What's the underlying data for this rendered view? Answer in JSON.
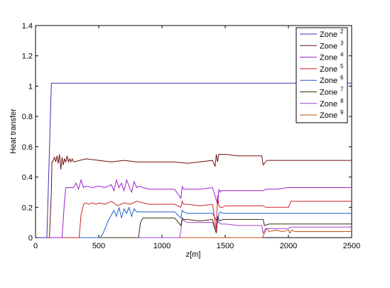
{
  "chart_data": {
    "type": "line",
    "xlabel": "z[m]",
    "ylabel": "Heat transfer",
    "xlim": [
      0,
      2500
    ],
    "ylim": [
      0,
      1.4
    ],
    "xticks": [
      "0",
      "500",
      "1000",
      "1500",
      "2000",
      "2500"
    ],
    "yticks": [
      "0",
      "0.2",
      "0.4",
      "0.6",
      "0.8",
      "1",
      "1.2",
      "1.4"
    ],
    "grid": false,
    "legend_position": "top-right",
    "series": [
      {
        "name": "Zone",
        "sup": "2",
        "color": "#3a2fb8",
        "x": [
          0,
          90,
          125,
          2500
        ],
        "y": [
          0,
          0,
          1.02,
          1.02
        ]
      },
      {
        "name": "Zone",
        "sup": "3",
        "color": "#6b0f0f",
        "x": [
          0,
          110,
          125,
          130,
          135,
          150,
          160,
          170,
          180,
          190,
          200,
          210,
          220,
          230,
          240,
          250,
          260,
          270,
          280,
          290,
          300,
          350,
          400,
          500,
          600,
          700,
          800,
          900,
          1000,
          1100,
          1200,
          1300,
          1400,
          1420,
          1430,
          1440,
          1450,
          1460,
          1470,
          1500,
          1600,
          1700,
          1790,
          1800,
          1810,
          1830,
          1850,
          1900,
          2000,
          2500
        ],
        "y": [
          0,
          0,
          0.3,
          0.5,
          0.5,
          0.53,
          0.5,
          0.54,
          0.49,
          0.55,
          0.45,
          0.53,
          0.48,
          0.52,
          0.5,
          0.54,
          0.5,
          0.52,
          0.5,
          0.52,
          0.5,
          0.51,
          0.52,
          0.51,
          0.5,
          0.51,
          0.5,
          0.5,
          0.5,
          0.5,
          0.49,
          0.5,
          0.51,
          0.47,
          0.55,
          0.5,
          0.55,
          0.55,
          0.55,
          0.55,
          0.54,
          0.54,
          0.54,
          0.48,
          0.49,
          0.51,
          0.51,
          0.51,
          0.51,
          0.51
        ]
      },
      {
        "name": "Zone",
        "sup": "4",
        "color": "#9b1fd0",
        "x": [
          0,
          210,
          230,
          240,
          250,
          300,
          320,
          340,
          360,
          380,
          400,
          450,
          500,
          550,
          600,
          620,
          640,
          660,
          680,
          700,
          720,
          740,
          760,
          780,
          800,
          820,
          850,
          900,
          1000,
          1100,
          1150,
          1160,
          1170,
          1200,
          1300,
          1400,
          1440,
          1450,
          1460,
          1470,
          1500,
          1800,
          1820,
          1900,
          2000,
          2500
        ],
        "y": [
          0,
          0,
          0.25,
          0.33,
          0.33,
          0.33,
          0.36,
          0.32,
          0.38,
          0.33,
          0.34,
          0.33,
          0.34,
          0.33,
          0.35,
          0.31,
          0.38,
          0.33,
          0.36,
          0.31,
          0.38,
          0.34,
          0.3,
          0.37,
          0.33,
          0.34,
          0.33,
          0.32,
          0.32,
          0.32,
          0.26,
          0.34,
          0.32,
          0.32,
          0.32,
          0.33,
          0.22,
          0.32,
          0.3,
          0.31,
          0.31,
          0.31,
          0.32,
          0.32,
          0.33,
          0.33
        ]
      },
      {
        "name": "Zone",
        "sup": "5",
        "color": "#d01f1f",
        "x": [
          0,
          345,
          360,
          380,
          400,
          420,
          450,
          480,
          500,
          550,
          600,
          650,
          700,
          750,
          800,
          850,
          900,
          1000,
          1100,
          1150,
          1160,
          1170,
          1200,
          1300,
          1400,
          1430,
          1440,
          1450,
          1460,
          1480,
          1500,
          1800,
          1820,
          2000,
          2020,
          2500
        ],
        "y": [
          0,
          0,
          0.15,
          0.22,
          0.23,
          0.22,
          0.23,
          0.22,
          0.23,
          0.22,
          0.24,
          0.21,
          0.23,
          0.22,
          0.24,
          0.23,
          0.22,
          0.22,
          0.22,
          0.2,
          0.24,
          0.22,
          0.22,
          0.21,
          0.22,
          0.05,
          0.28,
          0.21,
          0.2,
          0.2,
          0.21,
          0.21,
          0.2,
          0.2,
          0.24,
          0.24
        ]
      },
      {
        "name": "Zone",
        "sup": "6",
        "color": "#1f5fd0",
        "x": [
          0,
          510,
          530,
          560,
          580,
          600,
          620,
          640,
          660,
          680,
          700,
          720,
          740,
          760,
          780,
          800,
          850,
          900,
          1000,
          1100,
          1150,
          1160,
          1170,
          1200,
          1300,
          1400,
          1440,
          1450,
          1460,
          1480,
          1500,
          1800,
          2000,
          2500
        ],
        "y": [
          0,
          0,
          0.02,
          0.08,
          0.12,
          0.15,
          0.18,
          0.14,
          0.2,
          0.13,
          0.19,
          0.16,
          0.2,
          0.14,
          0.19,
          0.17,
          0.17,
          0.17,
          0.17,
          0.17,
          0.13,
          0.18,
          0.17,
          0.16,
          0.16,
          0.16,
          0.1,
          0.16,
          0.17,
          0.16,
          0.16,
          0.16,
          0.16,
          0.16
        ]
      },
      {
        "name": "Zone",
        "sup": "7",
        "color": "#3f2a0f",
        "x": [
          0,
          815,
          830,
          850,
          900,
          1000,
          1100,
          1150,
          1160,
          1170,
          1200,
          1300,
          1400,
          1430,
          1440,
          1450,
          1460,
          1480,
          1500,
          1600,
          1800,
          1810,
          1850,
          1900,
          2000,
          2500
        ],
        "y": [
          0,
          0,
          0.1,
          0.13,
          0.13,
          0.13,
          0.13,
          0.08,
          0.13,
          0.12,
          0.12,
          0.11,
          0.12,
          0.03,
          0.14,
          0.12,
          0.11,
          0.12,
          0.12,
          0.12,
          0.12,
          0.08,
          0.09,
          0.09,
          0.09,
          0.09
        ]
      },
      {
        "name": "Zone",
        "sup": "8",
        "color": "#a53fd0",
        "x": [
          0,
          1140,
          1150,
          1160,
          1200,
          1300,
          1400,
          1430,
          1440,
          1450,
          1460,
          1500,
          1600,
          1790,
          1800,
          1820,
          1900,
          2000,
          2020,
          2500
        ],
        "y": [
          0,
          0,
          0.05,
          0.12,
          0.1,
          0.1,
          0.1,
          0.03,
          0.12,
          0.1,
          0.09,
          0.09,
          0.08,
          0.08,
          0.03,
          0.06,
          0.06,
          0.06,
          0.07,
          0.07
        ]
      },
      {
        "name": "Zone",
        "sup": "9",
        "color": "#c04f10",
        "x": [
          0,
          1795,
          1810,
          1830,
          1850,
          1900,
          1950,
          2000,
          2010,
          2030,
          2050,
          2500
        ],
        "y": [
          0,
          0,
          0.03,
          0.06,
          0.04,
          0.05,
          0.04,
          0.05,
          0.03,
          0.05,
          0.04,
          0.04
        ]
      }
    ]
  }
}
